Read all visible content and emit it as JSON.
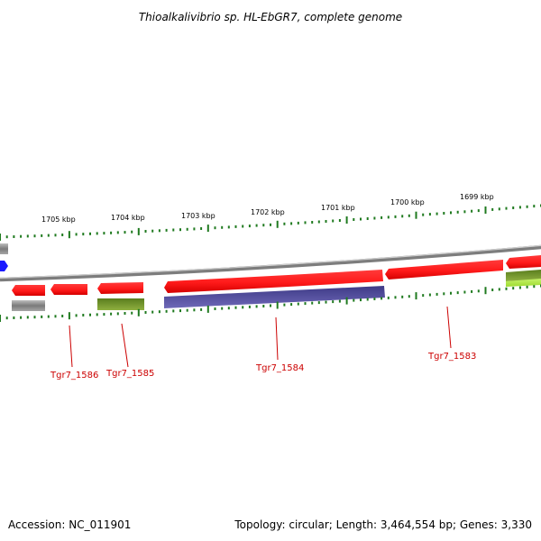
{
  "title": "Thioalkalivibrio sp. HL-EbGR7, complete genome",
  "scale_labels": [
    {
      "text": "1705 kbp"
    },
    {
      "text": "1704 kbp"
    },
    {
      "text": "1703 kbp"
    },
    {
      "text": "1702 kbp"
    },
    {
      "text": "1701 kbp"
    },
    {
      "text": "1700 kbp"
    },
    {
      "text": "1699 kbp"
    }
  ],
  "gene_labels": [
    {
      "text": "Tgr7_1586"
    },
    {
      "text": "Tgr7_1585"
    },
    {
      "text": "Tgr7_1584"
    },
    {
      "text": "Tgr7_1583"
    }
  ],
  "colors": {
    "cds_forward": "#ff1a1a",
    "backbone": "#8c8c8c",
    "tick": "#1f7a1f",
    "label": "#cc0000",
    "purple_feature": "#4b4593",
    "olive_feature": "#6b8e23",
    "lime_feature": "#b5ea4a",
    "blue_marker": "#1a1aff"
  },
  "footer": {
    "accession": "Accession: NC_011901",
    "summary": "Topology: circular; Length: 3,464,554 bp; Genes: 3,330"
  }
}
